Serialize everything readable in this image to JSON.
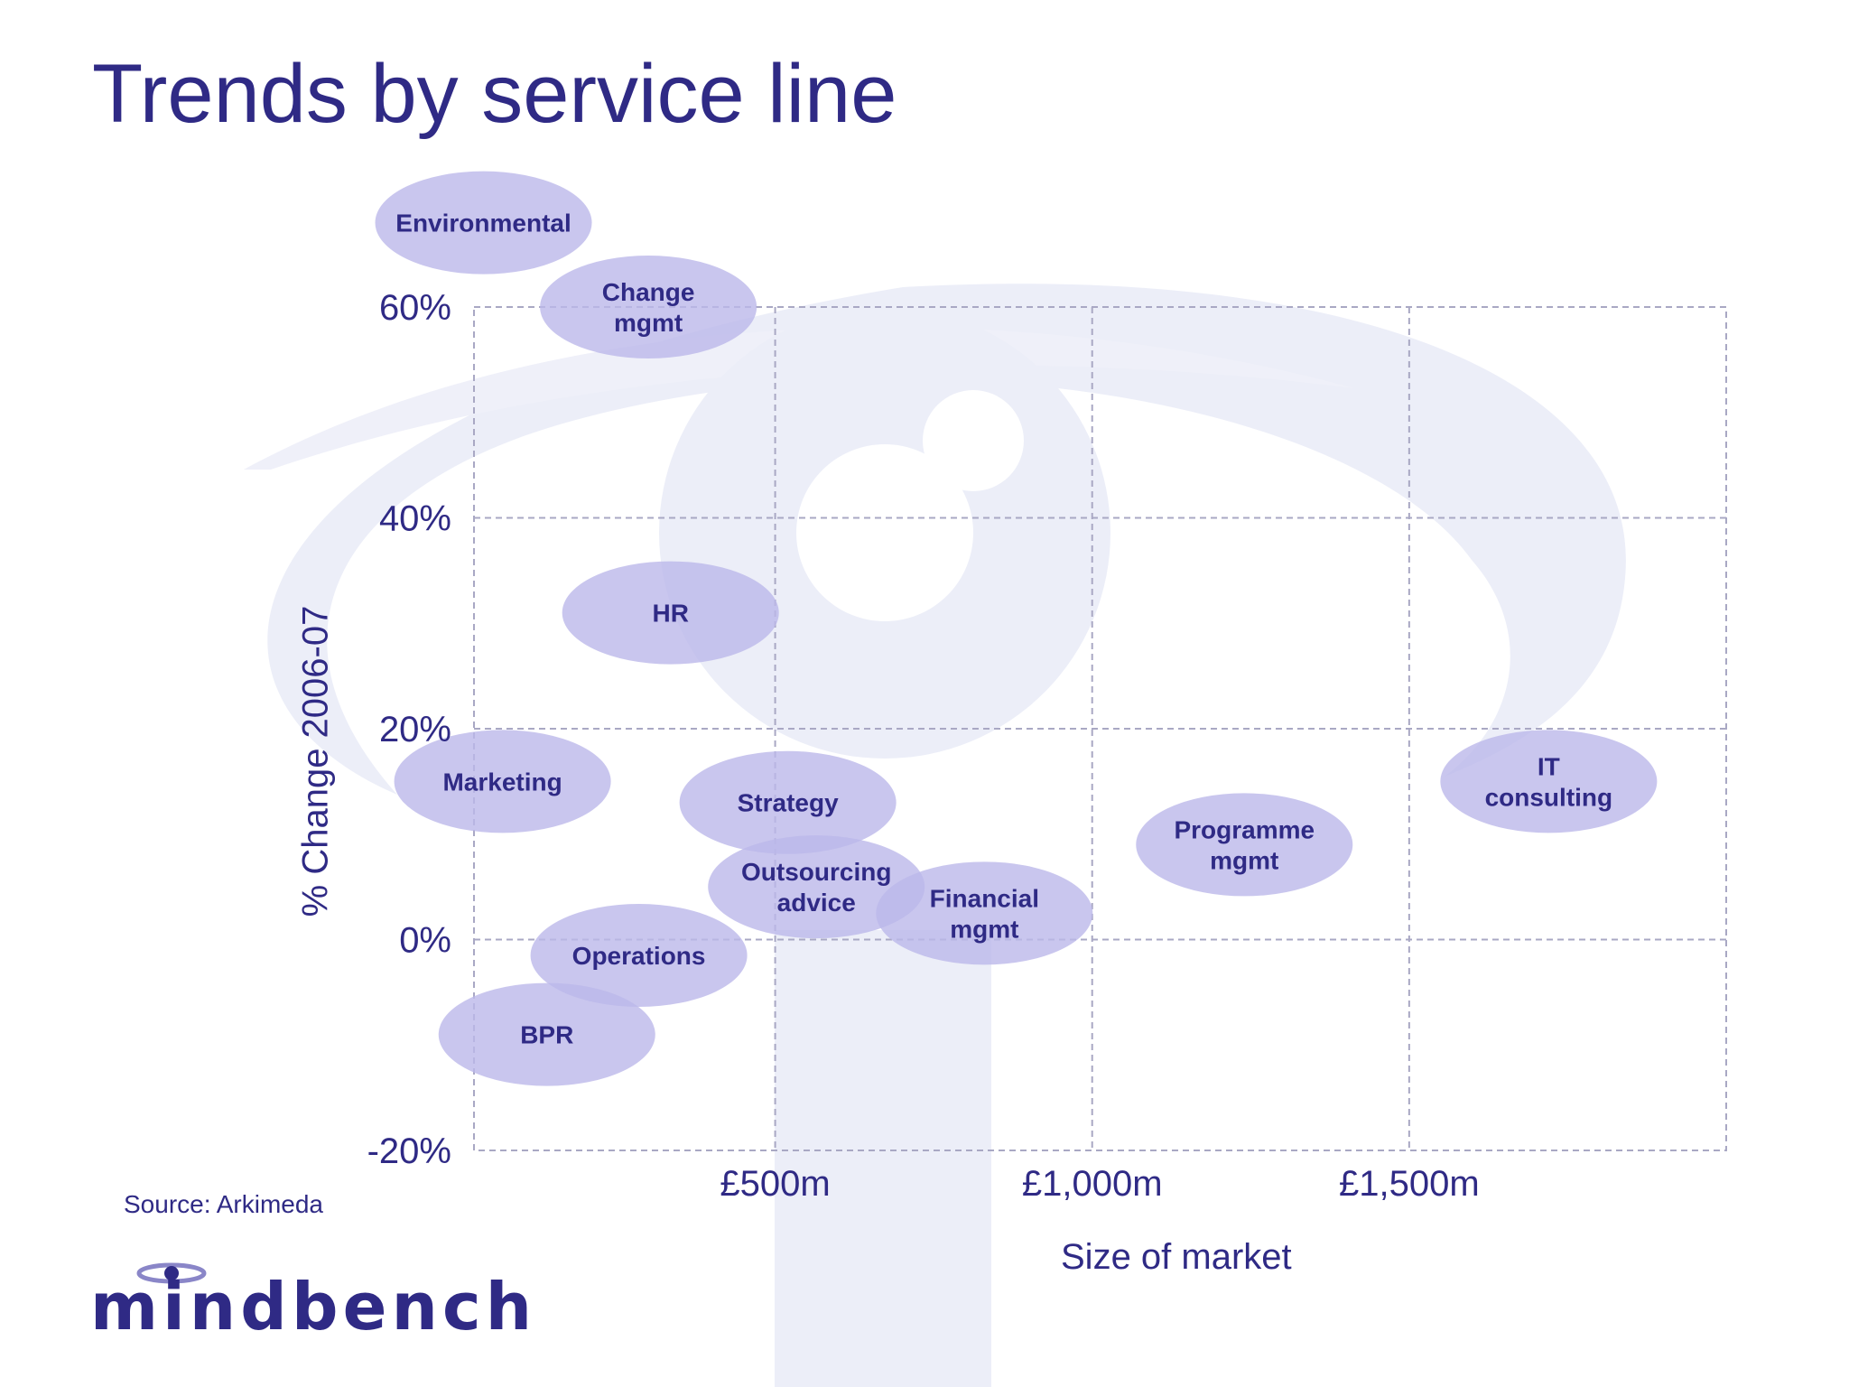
{
  "colors": {
    "title": "#2f2a85",
    "bubble_fill": "#bcb8ea",
    "bubble_text": "#2f2a85",
    "grid": "#a9a8c4",
    "watermark": "#eceef8"
  },
  "title": "Trends by service line",
  "source": "Source:  Arkimeda",
  "logo": {
    "text": "mindbench"
  },
  "chart_data": {
    "type": "bubble",
    "xlabel": "Size of market",
    "ylabel": "% Change 2006-07",
    "xlim": [
      25,
      2000
    ],
    "ylim": [
      -20,
      60
    ],
    "x_ticks": [
      {
        "value": 500,
        "label": "£500m"
      },
      {
        "value": 1000,
        "label": "£1,000m"
      },
      {
        "value": 1500,
        "label": "£1,500m"
      }
    ],
    "y_ticks": [
      {
        "value": 60,
        "label": "60%"
      },
      {
        "value": 40,
        "label": "40%"
      },
      {
        "value": 20,
        "label": "20%"
      },
      {
        "value": 0,
        "label": "0%"
      },
      {
        "value": -20,
        "label": "-20%"
      }
    ],
    "grid": true,
    "points": [
      {
        "name": "Environmental",
        "lines": [
          "Environmental"
        ],
        "x": 40,
        "y": 68
      },
      {
        "name": "Change mgmt",
        "lines": [
          "Change",
          "mgmt"
        ],
        "x": 300,
        "y": 60
      },
      {
        "name": "HR",
        "lines": [
          "HR"
        ],
        "x": 335,
        "y": 31
      },
      {
        "name": "Marketing",
        "lines": [
          "Marketing"
        ],
        "x": 70,
        "y": 15
      },
      {
        "name": "Strategy",
        "lines": [
          "Strategy"
        ],
        "x": 520,
        "y": 13
      },
      {
        "name": "Outsourcing advice",
        "lines": [
          "Outsourcing",
          "advice"
        ],
        "x": 565,
        "y": 5
      },
      {
        "name": "Financial mgmt",
        "lines": [
          "Financial",
          "mgmt"
        ],
        "x": 830,
        "y": 2.5
      },
      {
        "name": "Programme mgmt",
        "lines": [
          "Programme",
          "mgmt"
        ],
        "x": 1240,
        "y": 9
      },
      {
        "name": "IT consulting",
        "lines": [
          "IT",
          "consulting"
        ],
        "x": 1720,
        "y": 15
      },
      {
        "name": "Operations",
        "lines": [
          "Operations"
        ],
        "x": 285,
        "y": -1.5
      },
      {
        "name": "BPR",
        "lines": [
          "BPR"
        ],
        "x": 140,
        "y": -9
      }
    ]
  }
}
